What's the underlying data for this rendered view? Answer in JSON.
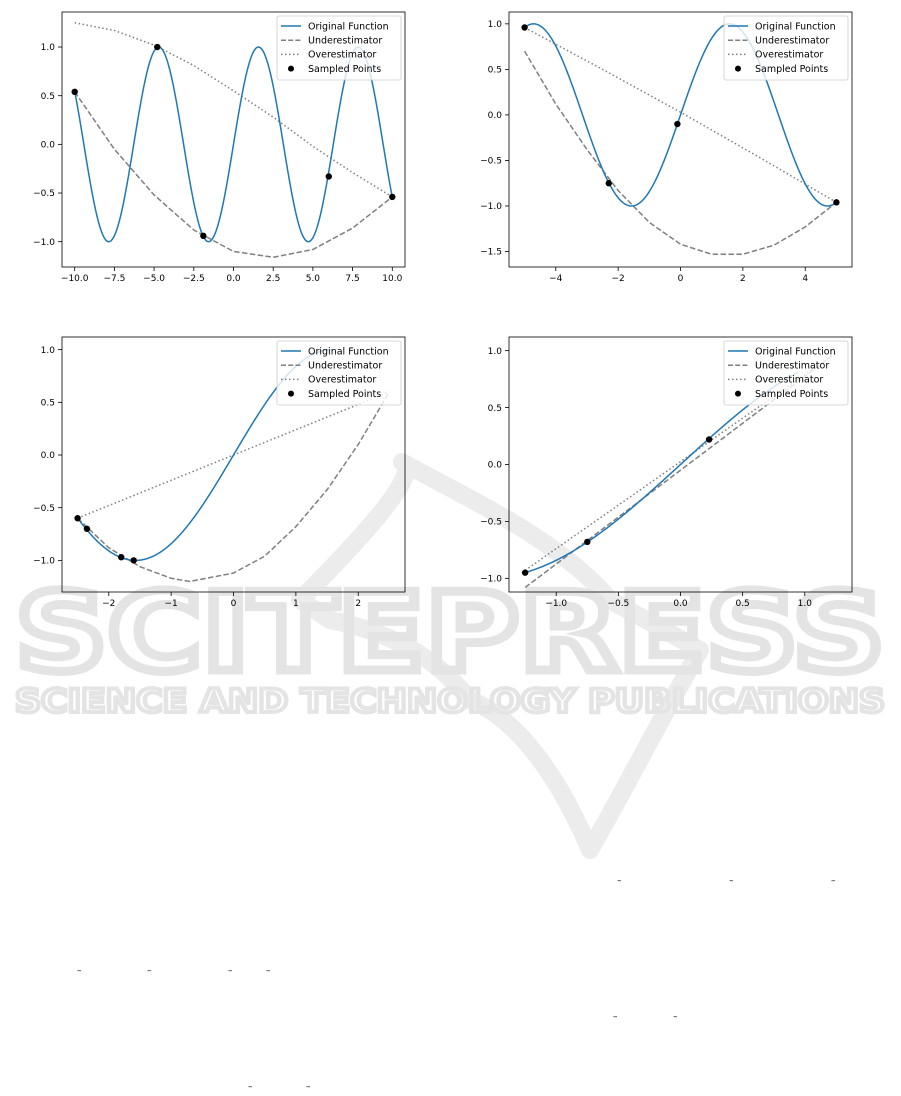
{
  "watermark": {
    "big": "SCITEPRESS",
    "small": "SCIENCE AND TECHNOLOGY PUBLICATIONS"
  },
  "legend_labels": [
    "Original Function",
    "Underestimator",
    "Overestimator",
    "Sampled Points"
  ],
  "colors": {
    "original": "#1f77b4",
    "under": "#7f7f7f",
    "over": "#7f7f7f",
    "points": "#000000"
  },
  "chart_data": [
    {
      "type": "line",
      "function": "sin",
      "xlim": [
        -10.8,
        10.8
      ],
      "ylim": [
        -1.26,
        1.36
      ],
      "xticks": [
        -10,
        -7.5,
        -5,
        -2.5,
        0,
        2.5,
        5,
        7.5,
        10
      ],
      "xtick_labels": [
        "−10.0",
        "−7.5",
        "−5.0",
        "−2.5",
        "0.0",
        "2.5",
        "5.0",
        "7.5",
        "10.0"
      ],
      "yticks": [
        -1,
        -0.5,
        0,
        0.5,
        1
      ],
      "ytick_labels": [
        "−1.0",
        "−0.5",
        "0.0",
        "0.5",
        "1.0"
      ],
      "original": {
        "x_range": [
          -10,
          10
        ]
      },
      "underestimator": {
        "x": [
          -10,
          -7.5,
          -5,
          -2.5,
          0,
          2.5,
          5,
          7.5,
          10
        ],
        "y": [
          0.54,
          -0.05,
          -0.52,
          -0.88,
          -1.1,
          -1.16,
          -1.08,
          -0.86,
          -0.54
        ]
      },
      "overestimator": {
        "x": [
          -10,
          -7.5,
          -5,
          -2.5,
          0,
          2.5,
          5,
          7.5,
          10
        ],
        "y": [
          1.25,
          1.17,
          1.02,
          0.81,
          0.55,
          0.28,
          -0.02,
          -0.29,
          -0.54
        ]
      },
      "sampled_points": {
        "x": [
          -10,
          -4.8,
          -1.9,
          6.0,
          10
        ],
        "y": [
          0.54,
          1.0,
          -0.94,
          -0.33,
          -0.54
        ]
      }
    },
    {
      "type": "line",
      "function": "sin",
      "xlim": [
        -5.5,
        5.5
      ],
      "ylim": [
        -1.67,
        1.13
      ],
      "xticks": [
        -4,
        -2,
        0,
        2,
        4
      ],
      "xtick_labels": [
        "−4",
        "−2",
        "0",
        "2",
        "4"
      ],
      "yticks": [
        -1.5,
        -1,
        -0.5,
        0,
        0.5,
        1
      ],
      "ytick_labels": [
        "−1.5",
        "−1.0",
        "−0.5",
        "0.0",
        "0.5",
        "1.0"
      ],
      "original": {
        "x_range": [
          -5,
          5
        ]
      },
      "underestimator": {
        "x": [
          -5,
          -4,
          -3,
          -2,
          -1,
          0,
          1,
          2,
          3,
          4,
          5
        ],
        "y": [
          0.7,
          0.12,
          -0.38,
          -0.83,
          -1.18,
          -1.42,
          -1.53,
          -1.53,
          -1.43,
          -1.23,
          -0.96
        ]
      },
      "overestimator": {
        "x": [
          -5,
          -2.5,
          0,
          2.5,
          5
        ],
        "y": [
          0.96,
          0.5,
          0.03,
          -0.46,
          -0.96
        ]
      },
      "sampled_points": {
        "x": [
          -5,
          -2.3,
          -0.1,
          5
        ],
        "y": [
          0.96,
          -0.75,
          -0.1,
          -0.96
        ]
      }
    },
    {
      "type": "line",
      "function": "sin",
      "xlim": [
        -2.75,
        2.75
      ],
      "ylim": [
        -1.3,
        1.12
      ],
      "xticks": [
        -2,
        -1,
        0,
        1,
        2
      ],
      "xtick_labels": [
        "−2",
        "−1",
        "0",
        "1",
        "2"
      ],
      "yticks": [
        -1,
        -0.5,
        0,
        0.5,
        1
      ],
      "ytick_labels": [
        "−1.0",
        "−0.5",
        "0.0",
        "0.5",
        "1.0"
      ],
      "original": {
        "x_range": [
          -2.5,
          1.5708
        ]
      },
      "underestimator": {
        "x": [
          -2.5,
          -2,
          -1.5,
          -1,
          -0.7,
          0,
          0.5,
          1,
          1.5,
          2,
          2.5
        ],
        "y": [
          -0.6,
          -0.88,
          -1.06,
          -1.17,
          -1.2,
          -1.12,
          -0.96,
          -0.68,
          -0.33,
          0.1,
          0.6
        ]
      },
      "overestimator": {
        "x": [
          -2.5,
          2.5
        ],
        "y": [
          -0.6,
          0.6
        ]
      },
      "sampled_points": {
        "x": [
          -2.5,
          -2.35,
          -1.8,
          -1.6
        ],
        "y": [
          -0.6,
          -0.7,
          -0.97,
          -1.0
        ]
      }
    },
    {
      "type": "line",
      "function": "sin",
      "xlim": [
        -1.38,
        1.38
      ],
      "ylim": [
        -1.12,
        1.12
      ],
      "xticks": [
        -1,
        -0.5,
        0,
        0.5,
        1
      ],
      "xtick_labels": [
        "−1.0",
        "−0.5",
        "0.0",
        "0.5",
        "1.0"
      ],
      "yticks": [
        -1,
        -0.5,
        0,
        0.5,
        1
      ],
      "ytick_labels": [
        "−1.0",
        "−0.5",
        "0.0",
        "0.5",
        "1.0"
      ],
      "original": {
        "x_range": [
          -1.25,
          0.95
        ]
      },
      "underestimator": {
        "x": [
          -1.25,
          1.25
        ],
        "y": [
          -1.08,
          0.98
        ]
      },
      "overestimator": {
        "x": [
          -1.25,
          1.25
        ],
        "y": [
          -0.93,
          0.98
        ]
      },
      "sampled_points": {
        "x": [
          -1.25,
          -0.75,
          0.23
        ],
        "y": [
          -0.95,
          -0.68,
          0.22
        ]
      }
    }
  ],
  "bottom_marks": [
    "–",
    "–",
    "–",
    "–",
    "–",
    "–",
    "–",
    "–",
    "–",
    "–",
    "–",
    "–",
    "–"
  ]
}
